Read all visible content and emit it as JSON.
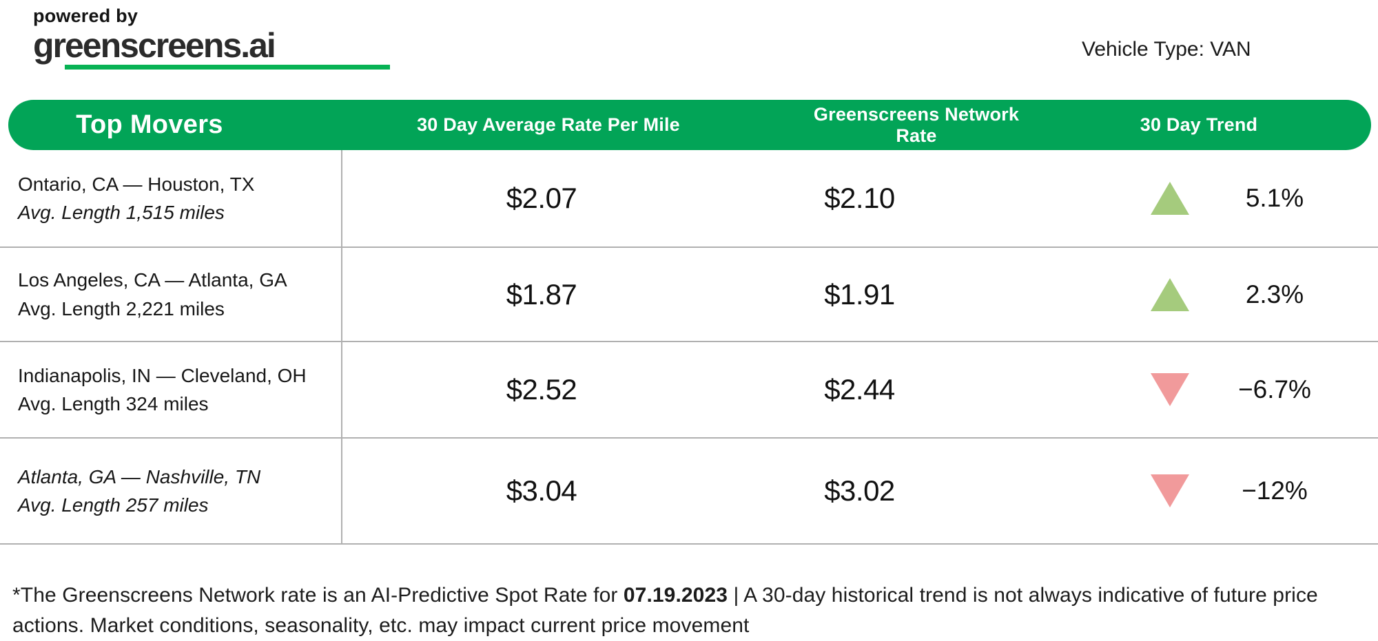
{
  "logo": {
    "powered_by": "powered by",
    "brand": "greenscreens.ai"
  },
  "vehicle_type_label": "Vehicle Type: VAN",
  "colors": {
    "accent_green": "#02a457",
    "underline_green": "#07b254",
    "trend_up": "#a5cb7d",
    "trend_down": "#f19a9b",
    "divider": "#b0b0b0"
  },
  "table": {
    "headers": {
      "col1": "Top Movers",
      "col2": "30 Day Average Rate Per Mile",
      "col3": "Greenscreens Network Rate",
      "col4": "30 Day Trend"
    },
    "rows": [
      {
        "lane": "Ontario, CA — Houston, TX",
        "avg_length": "Avg. Length 1,515 miles",
        "lane_italic": false,
        "avg_italic": true,
        "rate_30day": "$2.07",
        "network_rate": "$2.10",
        "trend": "5.1%",
        "direction": "up"
      },
      {
        "lane": "Los Angeles, CA — Atlanta, GA",
        "avg_length": "Avg. Length 2,221 miles",
        "lane_italic": false,
        "avg_italic": false,
        "rate_30day": "$1.87",
        "network_rate": "$1.91",
        "trend": "2.3%",
        "direction": "up"
      },
      {
        "lane": "Indianapolis, IN — Cleveland, OH",
        "avg_length": "Avg. Length 324 miles",
        "lane_italic": false,
        "avg_italic": false,
        "rate_30day": "$2.52",
        "network_rate": "$2.44",
        "trend": "−6.7%",
        "direction": "down"
      },
      {
        "lane": "Atlanta, GA — Nashville, TN",
        "avg_length": "Avg. Length 257 miles",
        "lane_italic": true,
        "avg_italic": true,
        "rate_30day": "$3.04",
        "network_rate": "$3.02",
        "trend": "−12%",
        "direction": "down"
      }
    ]
  },
  "footnote": {
    "prefix": "*The Greenscreens Network rate is an AI-Predictive Spot Rate for ",
    "date": "07.19.2023",
    "suffix": " | A 30-day historical trend is not always indicative of future price actions. Market conditions, seasonality, etc. may impact current price movement"
  },
  "chart_data": {
    "type": "table",
    "title": "Top Movers",
    "columns": [
      "Lane",
      "30 Day Average Rate Per Mile",
      "Greenscreens Network Rate",
      "30 Day Trend"
    ],
    "rows": [
      [
        "Ontario, CA — Houston, TX (Avg. Length 1,515 miles)",
        2.07,
        2.1,
        "+5.1%"
      ],
      [
        "Los Angeles, CA — Atlanta, GA (Avg. Length 2,221 miles)",
        1.87,
        1.91,
        "+2.3%"
      ],
      [
        "Indianapolis, IN — Cleveland, OH (Avg. Length 324 miles)",
        2.52,
        2.44,
        "-6.7%"
      ],
      [
        "Atlanta, GA — Nashville, TN (Avg. Length 257 miles)",
        3.04,
        3.02,
        "-12%"
      ]
    ],
    "notes": "Rates are $/mile for vehicle type VAN; Greenscreens Network rate is an AI-Predictive Spot Rate for 07.19.2023"
  }
}
